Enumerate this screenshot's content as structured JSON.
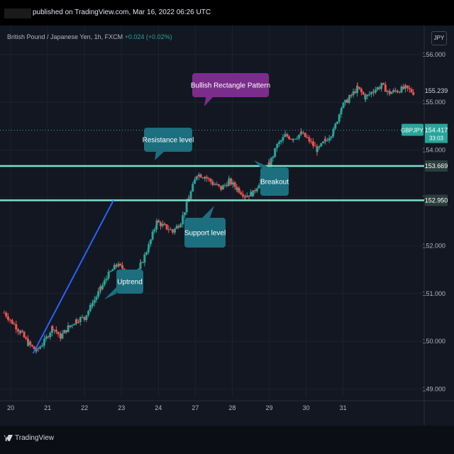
{
  "header": {
    "published_text": "published on TradingView.com, Mar 16, 2022 06:26 UTC"
  },
  "symbol": {
    "name": "British Pound / Japanese Yen, 1h, FXCM",
    "change": "+0.024 (+0.02%)"
  },
  "currency_label": "JPY",
  "footer": {
    "brand": "TradingView"
  },
  "colors": {
    "background": "#131722",
    "up": "#26a69a",
    "down": "#ef5350",
    "level_line": "#7ee0c8",
    "annotation_teal": "#1b6f7e",
    "annotation_purple": "#7b2d8b",
    "trendline": "#2962ff"
  },
  "annotations": [
    {
      "id": "pattern",
      "text": "Bullish Rectangle Pattern"
    },
    {
      "id": "resistance",
      "text": "Resistance level"
    },
    {
      "id": "breakout",
      "text": "Breakout"
    },
    {
      "id": "support",
      "text": "Support level"
    },
    {
      "id": "uptrend",
      "text": "Uptrend"
    }
  ],
  "chart_data": {
    "type": "candlestick",
    "ylim": [
      148.95,
      156.25
    ],
    "y_ticks": [
      "149.000",
      "150.000",
      "151.000",
      "152.000",
      "153.000",
      "154.000",
      "155.000",
      "156.000"
    ],
    "x_ticks": [
      "20",
      "21",
      "22",
      "23",
      "24",
      "27",
      "28",
      "29",
      "30",
      "31"
    ],
    "levels": [
      {
        "label": "153.669",
        "value": 153.669
      },
      {
        "label": "152.950",
        "value": 152.95
      }
    ],
    "price_labels": [
      {
        "label": "155.239",
        "value": 155.239
      },
      {
        "label": "GBPJPY",
        "value": 154.417
      },
      {
        "label": "154.417",
        "value": 154.417
      },
      {
        "label": "33:03",
        "value": 154.417
      }
    ],
    "current_price": 154.417,
    "trendline": {
      "from": [
        0.9,
        149.75
      ],
      "to": [
        3.4,
        152.95
      ]
    },
    "series": [
      {
        "x": 0,
        "y": 150.6
      },
      {
        "x": 0.25,
        "y": 150.4
      },
      {
        "x": 0.5,
        "y": 150.2
      },
      {
        "x": 0.75,
        "y": 149.95
      },
      {
        "x": 1.0,
        "y": 149.8
      },
      {
        "x": 1.25,
        "y": 150.0
      },
      {
        "x": 1.5,
        "y": 150.3
      },
      {
        "x": 1.75,
        "y": 150.1
      },
      {
        "x": 2.0,
        "y": 150.3
      },
      {
        "x": 2.25,
        "y": 150.45
      },
      {
        "x": 2.5,
        "y": 150.5
      },
      {
        "x": 2.75,
        "y": 150.8
      },
      {
        "x": 3.0,
        "y": 151.1
      },
      {
        "x": 3.25,
        "y": 151.4
      },
      {
        "x": 3.5,
        "y": 151.6
      },
      {
        "x": 3.75,
        "y": 151.5
      },
      {
        "x": 4.0,
        "y": 151.3
      },
      {
        "x": 4.25,
        "y": 151.6
      },
      {
        "x": 4.5,
        "y": 152.0
      },
      {
        "x": 4.75,
        "y": 152.5
      },
      {
        "x": 5.0,
        "y": 152.4
      },
      {
        "x": 5.25,
        "y": 152.3
      },
      {
        "x": 5.5,
        "y": 152.5
      },
      {
        "x": 5.75,
        "y": 153.0
      },
      {
        "x": 6.0,
        "y": 153.5
      },
      {
        "x": 6.25,
        "y": 153.45
      },
      {
        "x": 6.5,
        "y": 153.3
      },
      {
        "x": 6.75,
        "y": 153.2
      },
      {
        "x": 7.0,
        "y": 153.35
      },
      {
        "x": 7.25,
        "y": 153.2
      },
      {
        "x": 7.5,
        "y": 153.05
      },
      {
        "x": 7.75,
        "y": 153.1
      },
      {
        "x": 8.0,
        "y": 153.4
      },
      {
        "x": 8.25,
        "y": 153.7
      },
      {
        "x": 8.5,
        "y": 154.1
      },
      {
        "x": 8.75,
        "y": 154.3
      },
      {
        "x": 9.0,
        "y": 154.25
      },
      {
        "x": 9.25,
        "y": 154.35
      },
      {
        "x": 9.5,
        "y": 154.2
      },
      {
        "x": 9.75,
        "y": 154.0
      },
      {
        "x": 10.0,
        "y": 154.2
      },
      {
        "x": 10.25,
        "y": 154.4
      },
      {
        "x": 10.5,
        "y": 154.9
      },
      {
        "x": 10.75,
        "y": 155.1
      },
      {
        "x": 11.0,
        "y": 155.3
      },
      {
        "x": 11.25,
        "y": 155.1
      },
      {
        "x": 11.5,
        "y": 155.25
      },
      {
        "x": 11.75,
        "y": 155.35
      },
      {
        "x": 12.0,
        "y": 155.2
      },
      {
        "x": 12.25,
        "y": 155.25
      },
      {
        "x": 12.5,
        "y": 155.3
      },
      {
        "x": 12.75,
        "y": 155.2
      }
    ]
  }
}
